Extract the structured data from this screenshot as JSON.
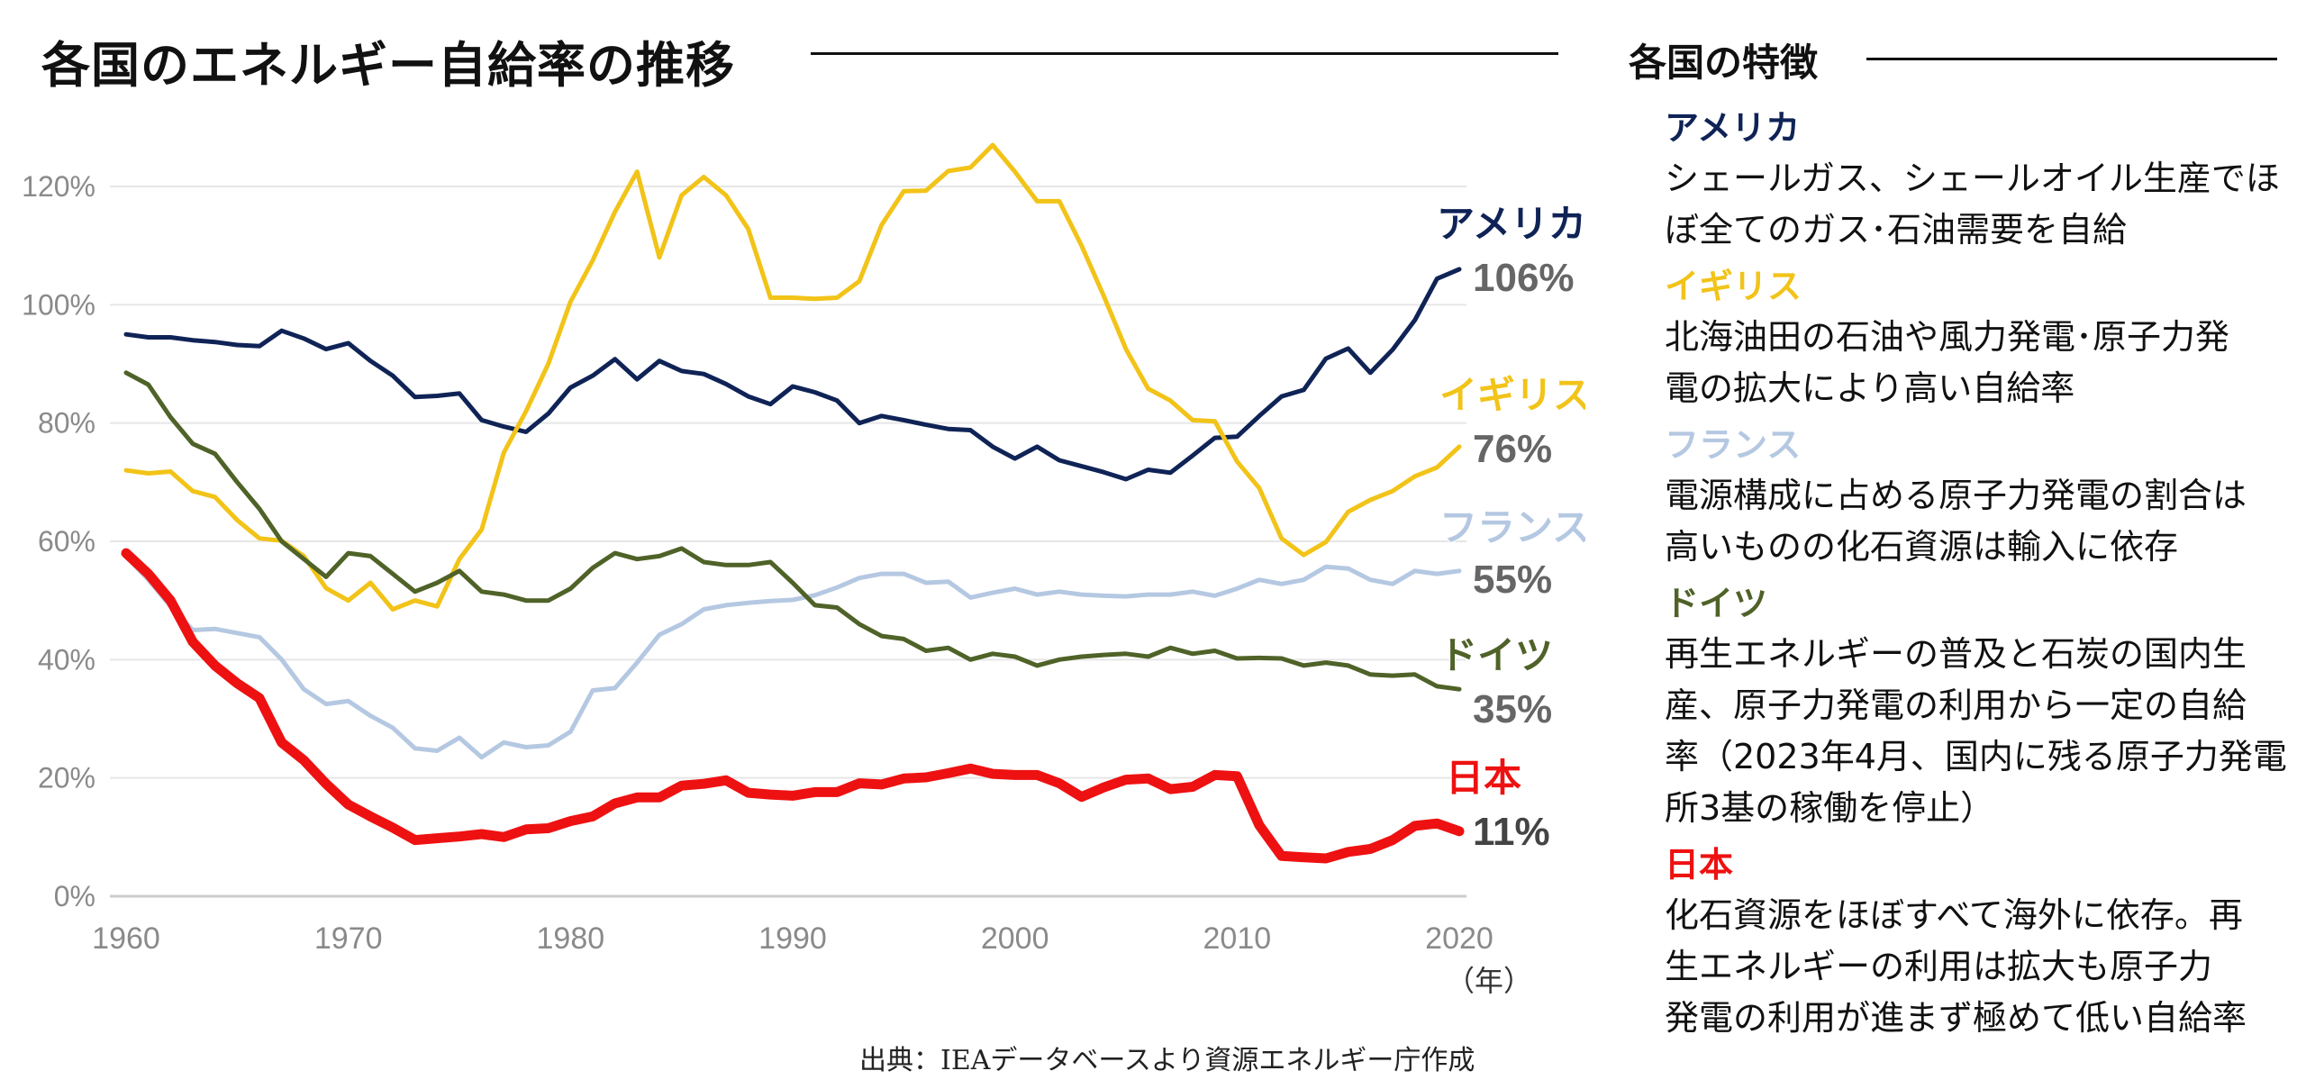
{
  "title": "各国のエネルギー自給率の推移",
  "side_title": "各国の特徴",
  "source": "出典：IEAデータベースより資源エネルギー庁作成",
  "year_unit": "（年）",
  "chart_data": {
    "type": "line",
    "title": "各国のエネルギー自給率の推移",
    "xlabel": "（年）",
    "ylabel": "",
    "xlim": [
      1960,
      2020
    ],
    "ylim": [
      0,
      130
    ],
    "x_ticks": [
      1960,
      1970,
      1980,
      1990,
      2000,
      2010,
      2020
    ],
    "x_tick_labels": [
      "1960",
      "1970",
      "1980",
      "1990",
      "2000",
      "2010",
      "2020"
    ],
    "y_ticks": [
      0,
      20,
      40,
      60,
      80,
      100,
      120
    ],
    "y_tick_labels": [
      "0%",
      "20%",
      "40%",
      "60%",
      "80%",
      "100%",
      "120%"
    ],
    "grid": "horizontal",
    "x": [
      1960,
      1961,
      1962,
      1963,
      1964,
      1965,
      1966,
      1967,
      1968,
      1969,
      1970,
      1971,
      1972,
      1973,
      1974,
      1975,
      1976,
      1977,
      1978,
      1979,
      1980,
      1981,
      1982,
      1983,
      1984,
      1985,
      1986,
      1987,
      1988,
      1989,
      1990,
      1991,
      1992,
      1993,
      1994,
      1995,
      1996,
      1997,
      1998,
      1999,
      2000,
      2001,
      2002,
      2003,
      2004,
      2005,
      2006,
      2007,
      2008,
      2009,
      2010,
      2011,
      2012,
      2013,
      2014,
      2015,
      2016,
      2017,
      2018,
      2019,
      2020
    ],
    "series": [
      {
        "name": "アメリカ",
        "end_label": "106%",
        "color": "#0f2356",
        "width": 5,
        "values": [
          95,
          94.5,
          94.5,
          94,
          93.7,
          93.2,
          93,
          95.6,
          94.3,
          92.5,
          93.5,
          90.5,
          88,
          84.4,
          84.6,
          85,
          80.5,
          79.4,
          78.5,
          81.6,
          86,
          88,
          90.8,
          87.4,
          90.5,
          88.8,
          88.3,
          86.6,
          84.5,
          83.2,
          86.2,
          85.2,
          83.8,
          80,
          81.2,
          80.5,
          79.7,
          79,
          78.8,
          76,
          74,
          76,
          73.7,
          72.7,
          71.7,
          70.5,
          72.1,
          71.6,
          74.5,
          77.5,
          77.7,
          81.2,
          84.5,
          85.6,
          90.9,
          92.6,
          88.5,
          92.4,
          97.4,
          104.4,
          106
        ]
      },
      {
        "name": "イギリス",
        "end_label": "76%",
        "color": "#f2c318",
        "width": 5,
        "values": [
          72,
          71.5,
          71.8,
          68.5,
          67.5,
          63.6,
          60.5,
          60.1,
          57.5,
          52.1,
          50,
          53,
          48.5,
          50,
          49,
          57,
          62,
          75,
          82,
          90,
          100.5,
          107.5,
          115.7,
          122.5,
          108,
          118.5,
          121.6,
          118.5,
          112.8,
          101.2,
          101.2,
          101,
          101.2,
          104,
          113.5,
          119.2,
          119.3,
          122.6,
          123.2,
          127,
          122.5,
          117.5,
          117.5,
          110,
          101.5,
          92.5,
          85.8,
          83.8,
          80.5,
          80.3,
          73.5,
          69,
          60.5,
          57.7,
          59.9,
          65,
          67,
          68.5,
          71,
          72.5,
          76
        ]
      },
      {
        "name": "フランス",
        "end_label": "55%",
        "color": "#b5c8e2",
        "width": 5,
        "values": [
          57.5,
          53.5,
          49,
          45,
          45.2,
          44.5,
          43.8,
          40,
          35,
          32.5,
          33,
          30.5,
          28.5,
          25,
          24.6,
          26.8,
          23.5,
          26,
          25.2,
          25.5,
          27.8,
          34.8,
          35.2,
          39.5,
          44.2,
          46,
          48.5,
          49.2,
          49.6,
          49.9,
          50.1,
          50.9,
          52.2,
          53.8,
          54.5,
          54.5,
          53,
          53.2,
          50.5,
          51.3,
          52,
          51,
          51.5,
          51,
          50.8,
          50.7,
          51,
          51,
          51.5,
          50.8,
          52,
          53.5,
          52.8,
          53.5,
          55.7,
          55.4,
          53.5,
          52.8,
          55,
          54.5,
          55
        ]
      },
      {
        "name": "ドイツ",
        "end_label": "35%",
        "color": "#4f6228",
        "width": 5,
        "values": [
          88.5,
          86.5,
          81,
          76.5,
          74.8,
          70,
          65.5,
          60,
          57,
          54,
          58,
          57.5,
          54.5,
          51.5,
          53,
          55,
          51.5,
          51,
          50,
          50,
          52,
          55.5,
          58,
          57,
          57.5,
          58.8,
          56.5,
          56,
          56,
          56.5,
          53,
          49.2,
          48.8,
          46,
          44,
          43.5,
          41.5,
          42,
          40,
          41,
          40.5,
          39,
          40,
          40.5,
          40.8,
          41,
          40.5,
          42,
          41,
          41.5,
          40.2,
          40.3,
          40.2,
          39,
          39.5,
          39,
          37.5,
          37.3,
          37.5,
          35.5,
          35
        ]
      },
      {
        "name": "日本",
        "end_label": "11%",
        "color": "#ee1111",
        "width": 11,
        "values": [
          58,
          54.5,
          50,
          43,
          39,
          36,
          33.5,
          26,
          23,
          19,
          15.5,
          13.5,
          11.6,
          9.5,
          9.8,
          10.1,
          10.5,
          10,
          11.3,
          11.5,
          12.7,
          13.5,
          15.7,
          16.7,
          16.7,
          18.7,
          19,
          19.6,
          17.5,
          17.2,
          17,
          17.6,
          17.6,
          19.1,
          18.9,
          19.9,
          20.1,
          20.8,
          21.6,
          20.7,
          20.5,
          20.5,
          19.1,
          16.8,
          18.4,
          19.7,
          19.9,
          18.1,
          18.5,
          20.5,
          20.3,
          12,
          6.8,
          6.6,
          6.4,
          7.5,
          8,
          9.5,
          11.9,
          12.3,
          11
        ]
      }
    ]
  },
  "features": [
    {
      "name": "アメリカ",
      "color": "#0f2356",
      "desc": [
        "シェールガス、シェールオイル生産でほ",
        "ぼ全てのガス･石油需要を自給"
      ]
    },
    {
      "name": "イギリス",
      "color": "#f2c318",
      "desc": [
        "北海油田の石油や風力発電･原子力発",
        "電の拡大により高い自給率"
      ]
    },
    {
      "name": "フランス",
      "color": "#b5c8e2",
      "desc": [
        "電源構成に占める原子力発電の割合は",
        "高いものの化石資源は輸入に依存"
      ]
    },
    {
      "name": "ドイツ",
      "color": "#4f6228",
      "desc": [
        "再生エネルギーの普及と石炭の国内生",
        "産、原子力発電の利用から一定の自給",
        "率（2023年4月、国内に残る原子力発電",
        "所3基の稼働を停止）"
      ]
    },
    {
      "name": "日本",
      "color": "#ee1111",
      "desc": [
        "化石資源をほぼすべて海外に依存。再",
        "生エネルギーの利用は拡大も原子力",
        "発電の利用が進まず極めて低い自給率"
      ]
    }
  ]
}
